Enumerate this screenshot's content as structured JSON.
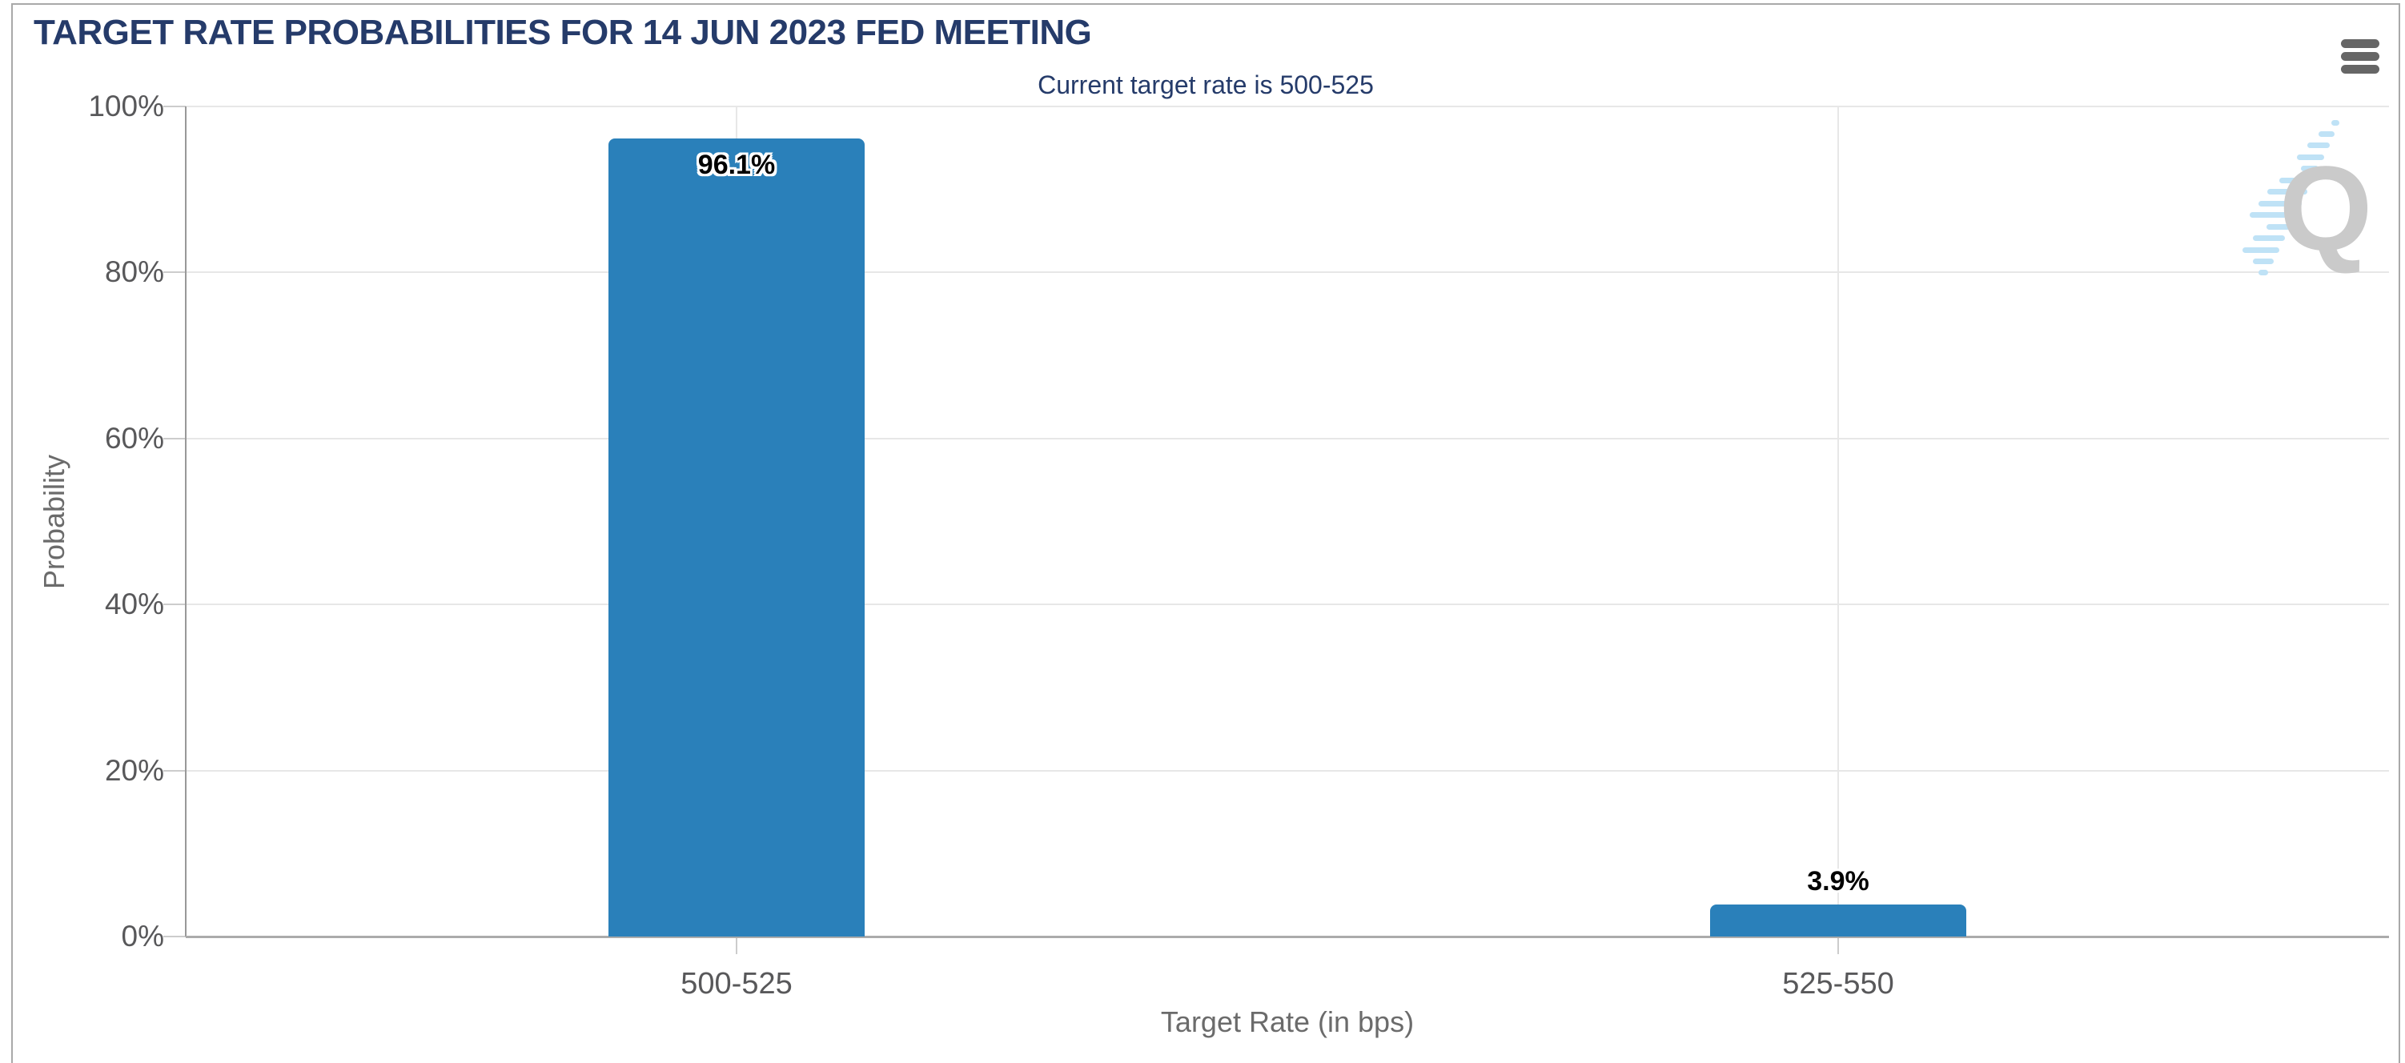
{
  "header": {
    "menu_tooltip": "Chart context menu"
  },
  "chart_data": {
    "type": "bar",
    "title": "TARGET RATE PROBABILITIES FOR 14 JUN 2023 FED MEETING",
    "subtitle": "Current target rate is 500-525",
    "categories": [
      "500-525",
      "525-550"
    ],
    "values": [
      96.1,
      3.9
    ],
    "value_labels": [
      "96.1%",
      "3.9%"
    ],
    "xlabel": "Target Rate (in bps)",
    "ylabel": "Probability",
    "ylim": [
      0,
      100
    ],
    "ytick_labels": [
      "100%",
      "80%",
      "60%",
      "40%",
      "20%",
      "0%"
    ],
    "grid": true,
    "legend": "none",
    "bar_color": "#2a80ba"
  },
  "watermark": {
    "letter": "Q"
  },
  "colors": {
    "bar": "#2a80ba",
    "navy": "#253b6a",
    "grid": "#e7e7e7",
    "axis": "#999999",
    "baseline": "#ababab",
    "tick": "#cccccc",
    "ticktext": "#58585a",
    "axistitle": "#6b6b6b",
    "menu": "#666666",
    "wq": "#cacaca",
    "wblue": "#bfe2f6",
    "border": "#a9a9a9"
  }
}
